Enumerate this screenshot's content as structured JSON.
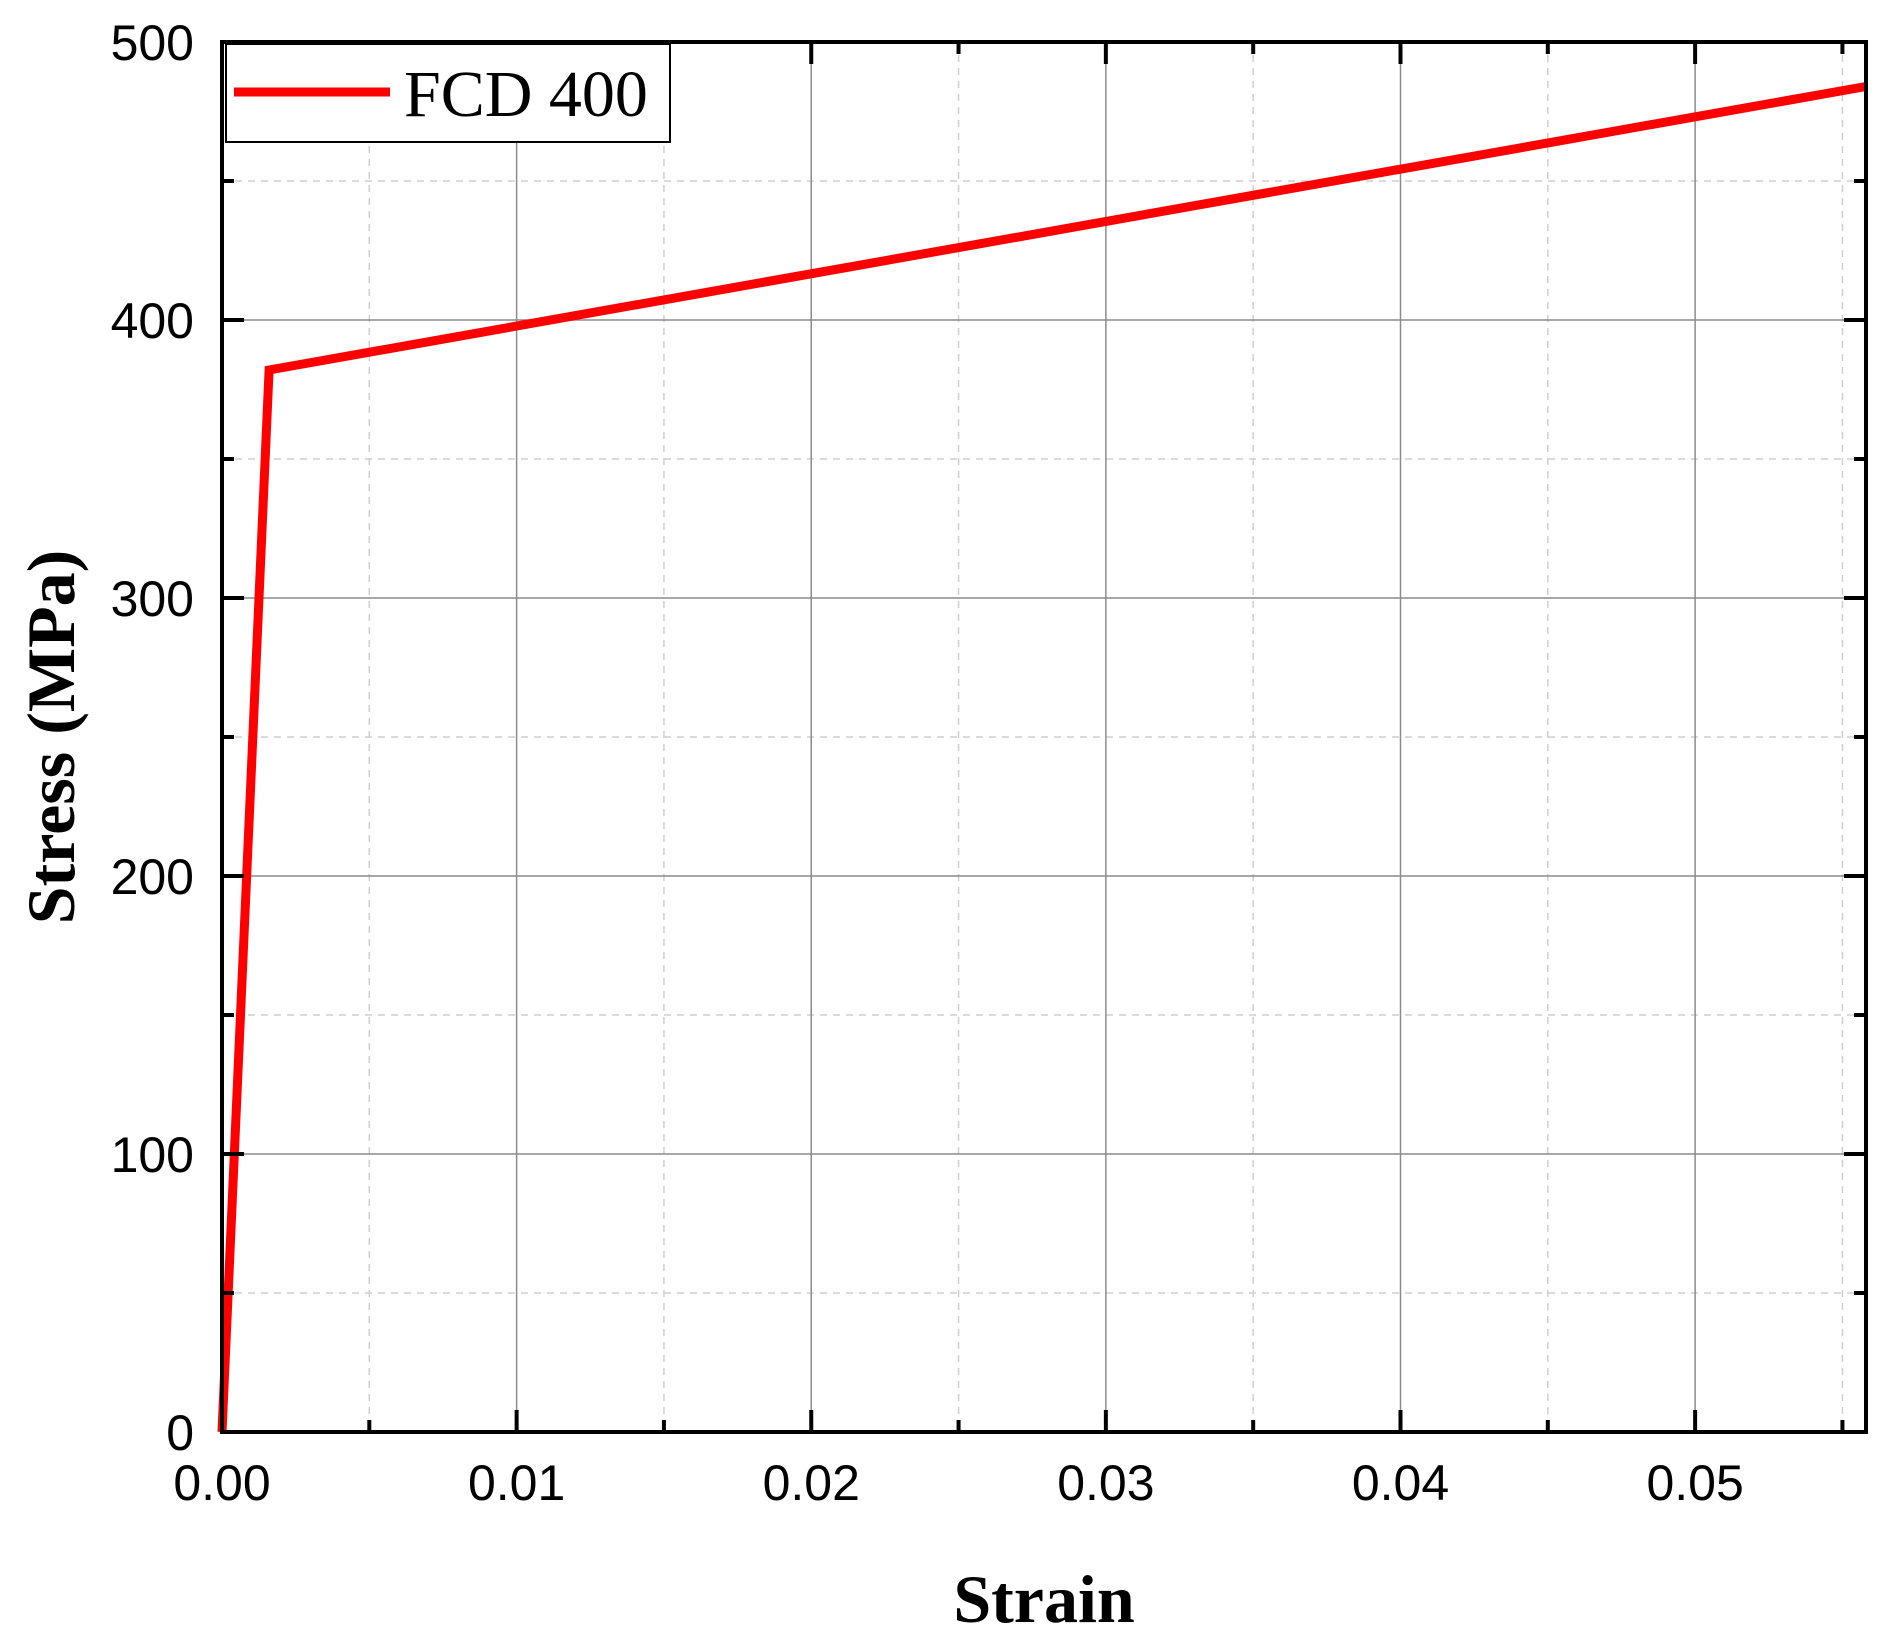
{
  "chart_data": {
    "type": "line",
    "xlabel": "Strain",
    "ylabel": "Stress (MPa)",
    "xlim": [
      0,
      0.0558
    ],
    "ylim": [
      0,
      500
    ],
    "x_ticks": [
      {
        "value": 0,
        "label": "0.00"
      },
      {
        "value": 0.01,
        "label": "0.01"
      },
      {
        "value": 0.02,
        "label": "0.02"
      },
      {
        "value": 0.03,
        "label": "0.03"
      },
      {
        "value": 0.04,
        "label": "0.04"
      },
      {
        "value": 0.05,
        "label": "0.05"
      }
    ],
    "x_minor_ticks": [
      0.005,
      0.015,
      0.025,
      0.035,
      0.045,
      0.055
    ],
    "y_ticks": [
      {
        "value": 0,
        "label": "0"
      },
      {
        "value": 100,
        "label": "100"
      },
      {
        "value": 200,
        "label": "200"
      },
      {
        "value": 300,
        "label": "300"
      },
      {
        "value": 400,
        "label": "400"
      },
      {
        "value": 500,
        "label": "500"
      }
    ],
    "y_minor_ticks": [
      50,
      150,
      250,
      350,
      450
    ],
    "grid": true,
    "legend_position": "top-left",
    "series": [
      {
        "name": "FCD 400",
        "color": "#ff0000",
        "x": [
          0,
          0.0016,
          0.0558
        ],
        "y": [
          0,
          382,
          484
        ]
      }
    ]
  }
}
